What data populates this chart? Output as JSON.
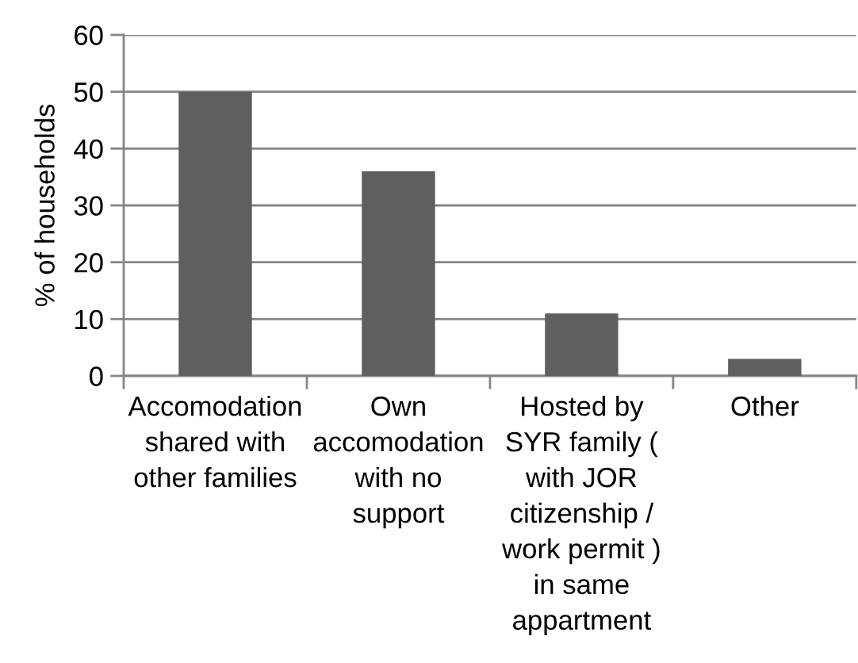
{
  "chart_data": {
    "type": "bar",
    "ylabel": "% of households",
    "categories": [
      "Accomodation\nshared with\nother families",
      "Own\naccomodation\nwith no\nsupport",
      "Hosted by\nSYR family (\nwith JOR\ncitizenship /\nwork permit )\nin same\nappartment",
      "Other"
    ],
    "values": [
      50,
      36,
      11,
      3
    ],
    "color": "#5f5f5f",
    "ylim": [
      0,
      60
    ],
    "yticks": [
      0,
      10,
      20,
      30,
      40,
      50,
      60
    ],
    "grid": "y"
  }
}
